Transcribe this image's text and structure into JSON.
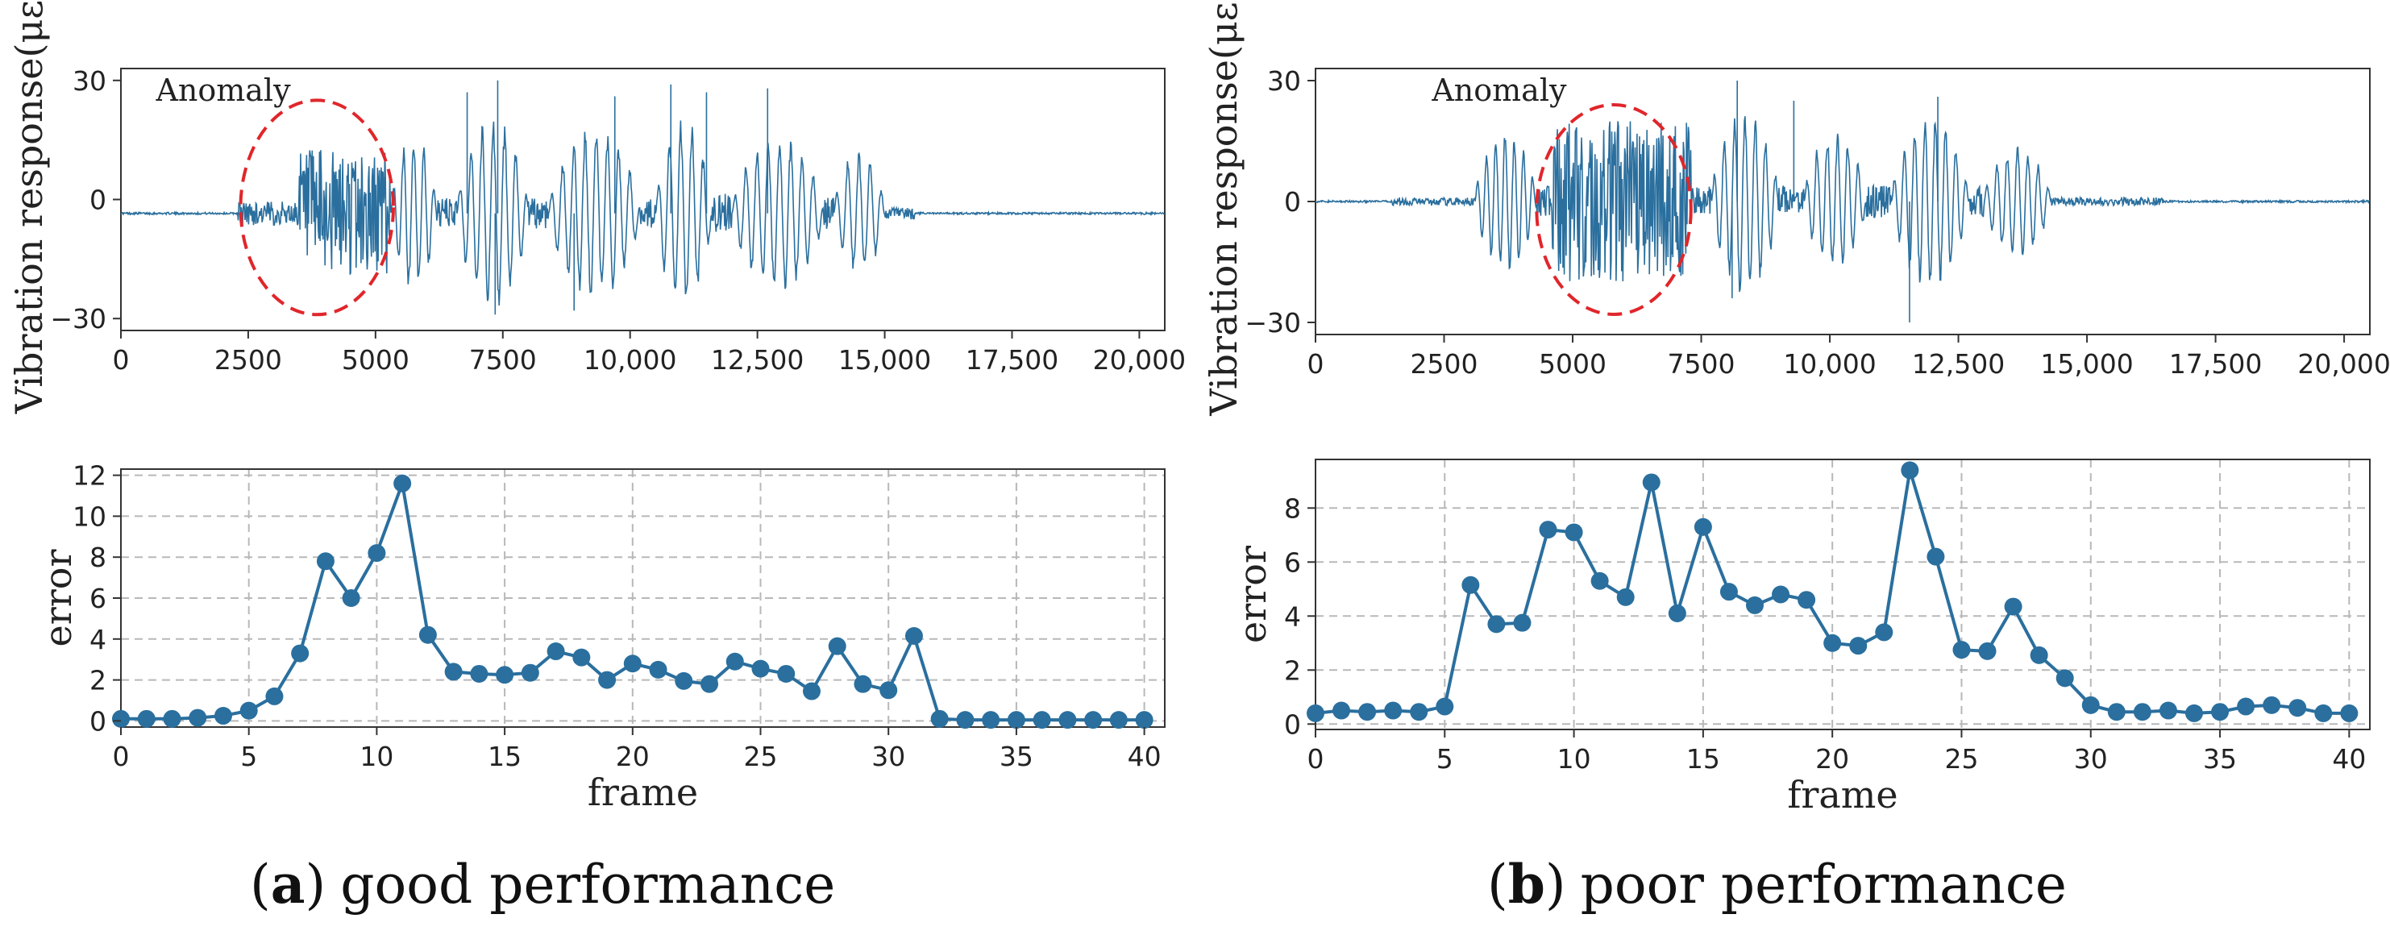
{
  "captions": [
    {
      "open": "(",
      "letter": "a",
      "close": ")",
      "text": "good performance"
    },
    {
      "open": "(",
      "letter": "b",
      "close": ")",
      "text": "poor performance"
    }
  ],
  "chart_data": [
    {
      "type": "line",
      "panel": "a-top",
      "ylabel": "Vibration response(με)",
      "xlim": [
        0,
        20500
      ],
      "ylim": [
        -33,
        33
      ],
      "xticks": [
        0,
        2500,
        5000,
        7500,
        10000,
        12500,
        15000,
        17500,
        20000
      ],
      "xticklabels": [
        "0",
        "2500",
        "5000",
        "7500",
        "10,000",
        "12,500",
        "15,000",
        "17,500",
        "20,000"
      ],
      "yticks": [
        -30,
        0,
        30
      ],
      "yticklabels": [
        "−30",
        "0",
        "30"
      ],
      "grid": false,
      "color": "#2a6f9e",
      "baseline": -3.5,
      "segments": [
        {
          "x0": 2300,
          "x1": 3500,
          "amp": 3,
          "period": 60,
          "kind": "noise"
        },
        {
          "x0": 3500,
          "x1": 5300,
          "amp": 16,
          "period": 70,
          "kind": "noise"
        },
        {
          "x0": 5300,
          "x1": 6200,
          "amp": 20,
          "period": 200,
          "kind": "burst"
        },
        {
          "x0": 6200,
          "x1": 6600,
          "amp": 4,
          "period": 150,
          "kind": "noise"
        },
        {
          "x0": 6600,
          "x1": 8000,
          "amp": 24,
          "period": 220,
          "kind": "burst"
        },
        {
          "x0": 8000,
          "x1": 8400,
          "amp": 4,
          "period": 150,
          "kind": "noise"
        },
        {
          "x0": 8400,
          "x1": 10200,
          "amp": 22,
          "period": 220,
          "kind": "burst"
        },
        {
          "x0": 10200,
          "x1": 10500,
          "amp": 4,
          "period": 150,
          "kind": "noise"
        },
        {
          "x0": 10500,
          "x1": 11600,
          "amp": 24,
          "period": 220,
          "kind": "burst"
        },
        {
          "x0": 11600,
          "x1": 12000,
          "amp": 5,
          "period": 150,
          "kind": "noise"
        },
        {
          "x0": 12000,
          "x1": 13800,
          "amp": 20,
          "period": 220,
          "kind": "burst"
        },
        {
          "x0": 13800,
          "x1": 14000,
          "amp": 4,
          "period": 150,
          "kind": "noise"
        },
        {
          "x0": 14000,
          "x1": 15000,
          "amp": 16,
          "period": 220,
          "kind": "burst"
        },
        {
          "x0": 15000,
          "x1": 15600,
          "amp": 1.5,
          "period": 120,
          "kind": "noise"
        }
      ],
      "peaks": [
        {
          "x": 7400,
          "y": 30
        },
        {
          "x": 7350,
          "y": -29
        },
        {
          "x": 10800,
          "y": 29
        },
        {
          "x": 12700,
          "y": 28
        },
        {
          "x": 9700,
          "y": 26
        },
        {
          "x": 11500,
          "y": 27
        },
        {
          "x": 6800,
          "y": 27
        },
        {
          "x": 8900,
          "y": -28
        }
      ],
      "annotation": {
        "label": "Anomaly",
        "ellipse_center": [
          3850,
          -2
        ],
        "ellipse_rx": 1500,
        "ellipse_ry": 27
      }
    },
    {
      "type": "line",
      "panel": "b-top",
      "ylabel": "Vibration response(με)",
      "xlim": [
        0,
        20500
      ],
      "ylim": [
        -33,
        33
      ],
      "xticks": [
        0,
        2500,
        5000,
        7500,
        10000,
        12500,
        15000,
        17500,
        20000
      ],
      "xticklabels": [
        "0",
        "2500",
        "5000",
        "7500",
        "10,000",
        "12,500",
        "15,000",
        "17,500",
        "20,000"
      ],
      "yticks": [
        -30,
        0,
        30
      ],
      "yticklabels": [
        "−30",
        "0",
        "30"
      ],
      "grid": false,
      "color": "#2a6f9e",
      "baseline": 0,
      "segments": [
        {
          "x0": 1500,
          "x1": 3100,
          "amp": 1,
          "period": 80,
          "kind": "noise"
        },
        {
          "x0": 3100,
          "x1": 4300,
          "amp": 18,
          "period": 180,
          "kind": "burst"
        },
        {
          "x0": 4300,
          "x1": 4600,
          "amp": 4,
          "period": 120,
          "kind": "noise"
        },
        {
          "x0": 4600,
          "x1": 7300,
          "amp": 20,
          "period": 120,
          "kind": "noise"
        },
        {
          "x0": 7300,
          "x1": 7700,
          "amp": 4,
          "period": 120,
          "kind": "noise"
        },
        {
          "x0": 7700,
          "x1": 9000,
          "amp": 24,
          "period": 200,
          "kind": "burst"
        },
        {
          "x0": 9000,
          "x1": 9500,
          "amp": 4,
          "period": 150,
          "kind": "noise"
        },
        {
          "x0": 9500,
          "x1": 10700,
          "amp": 18,
          "period": 200,
          "kind": "burst"
        },
        {
          "x0": 10700,
          "x1": 11200,
          "amp": 4,
          "period": 150,
          "kind": "noise"
        },
        {
          "x0": 11200,
          "x1": 12700,
          "amp": 22,
          "period": 200,
          "kind": "burst"
        },
        {
          "x0": 12700,
          "x1": 13000,
          "amp": 4,
          "period": 150,
          "kind": "noise"
        },
        {
          "x0": 13000,
          "x1": 14300,
          "amp": 14,
          "period": 200,
          "kind": "burst"
        },
        {
          "x0": 14300,
          "x1": 16500,
          "amp": 1,
          "period": 120,
          "kind": "noise"
        }
      ],
      "peaks": [
        {
          "x": 8200,
          "y": 30
        },
        {
          "x": 11550,
          "y": -30
        },
        {
          "x": 12100,
          "y": 26
        },
        {
          "x": 9300,
          "y": 25
        },
        {
          "x": 8100,
          "y": -24
        }
      ],
      "annotation": {
        "label": "Anomaly",
        "ellipse_center": [
          5800,
          -2
        ],
        "ellipse_rx": 1500,
        "ellipse_ry": 26
      }
    },
    {
      "type": "line",
      "panel": "a-bottom",
      "xlabel": "frame",
      "ylabel": "error",
      "xlim": [
        0,
        40.8
      ],
      "ylim": [
        -0.3,
        12.3
      ],
      "xticks": [
        0,
        5,
        10,
        15,
        20,
        25,
        30,
        35,
        40
      ],
      "xticklabels": [
        "0",
        "5",
        "10",
        "15",
        "20",
        "25",
        "30",
        "35",
        "40"
      ],
      "yticks": [
        0,
        2,
        4,
        6,
        8,
        10,
        12
      ],
      "yticklabels": [
        "0",
        "2",
        "4",
        "6",
        "8",
        "10",
        "12"
      ],
      "grid": true,
      "color": "#2a6f9e",
      "x": [
        0,
        1,
        2,
        3,
        4,
        5,
        6,
        7,
        8,
        9,
        10,
        11,
        12,
        13,
        14,
        15,
        16,
        17,
        18,
        19,
        20,
        21,
        22,
        23,
        24,
        25,
        26,
        27,
        28,
        29,
        30,
        31,
        32,
        33,
        34,
        35,
        36,
        37,
        38,
        39,
        40
      ],
      "y": [
        0.1,
        0.1,
        0.1,
        0.15,
        0.25,
        0.5,
        1.2,
        3.3,
        7.8,
        6.0,
        8.2,
        11.6,
        4.2,
        2.4,
        2.3,
        2.25,
        2.35,
        3.4,
        3.1,
        2.0,
        2.8,
        2.5,
        1.95,
        1.8,
        2.9,
        2.55,
        2.3,
        1.45,
        3.65,
        1.8,
        1.5,
        4.15,
        0.1,
        0.05,
        0.05,
        0.05,
        0.05,
        0.05,
        0.05,
        0.05,
        0.05
      ]
    },
    {
      "type": "line",
      "panel": "b-bottom",
      "xlabel": "frame",
      "ylabel": "error",
      "xlim": [
        0,
        40.8
      ],
      "ylim": [
        -0.2,
        9.8
      ],
      "xticks": [
        0,
        5,
        10,
        15,
        20,
        25,
        30,
        35,
        40
      ],
      "xticklabels": [
        "0",
        "5",
        "10",
        "15",
        "20",
        "25",
        "30",
        "35",
        "40"
      ],
      "yticks": [
        0,
        2,
        4,
        6,
        8
      ],
      "yticklabels": [
        "0",
        "2",
        "4",
        "6",
        "8"
      ],
      "grid": true,
      "color": "#2a6f9e",
      "x": [
        0,
        1,
        2,
        3,
        4,
        5,
        6,
        7,
        8,
        9,
        10,
        11,
        12,
        13,
        14,
        15,
        16,
        17,
        18,
        19,
        20,
        21,
        22,
        23,
        24,
        25,
        26,
        27,
        28,
        29,
        30,
        31,
        32,
        33,
        34,
        35,
        36,
        37,
        38,
        39,
        40
      ],
      "y": [
        0.4,
        0.5,
        0.45,
        0.5,
        0.45,
        0.65,
        5.15,
        3.7,
        3.75,
        7.2,
        7.1,
        5.3,
        4.7,
        8.95,
        4.1,
        7.3,
        4.9,
        4.4,
        4.8,
        4.6,
        3.0,
        2.9,
        3.4,
        9.4,
        6.2,
        2.75,
        2.7,
        4.35,
        2.55,
        1.7,
        0.7,
        0.45,
        0.45,
        0.5,
        0.4,
        0.45,
        0.65,
        0.7,
        0.6,
        0.4,
        0.4
      ]
    }
  ]
}
